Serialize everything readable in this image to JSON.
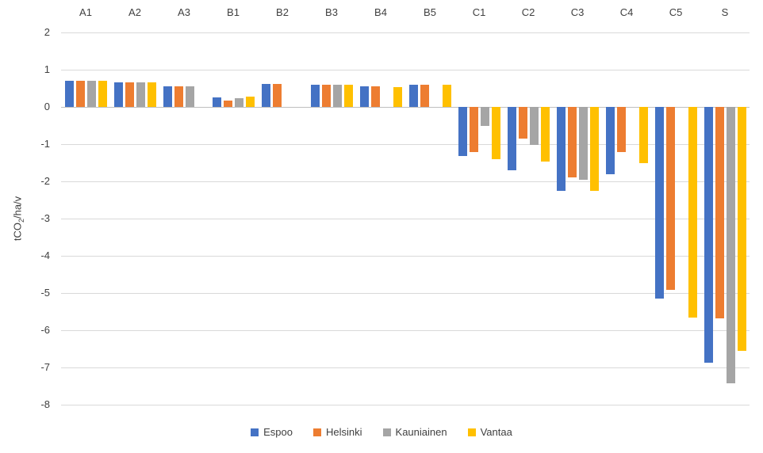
{
  "chart_data": {
    "type": "bar",
    "title": "",
    "ylabel": {
      "prefix": "tCO",
      "sub": "2",
      "suffix": "/ha/v"
    },
    "ylabel_text": "tCO2/ha/v",
    "categories": [
      "A1",
      "A2",
      "A3",
      "B1",
      "B2",
      "B3",
      "B4",
      "B5",
      "C1",
      "C2",
      "C3",
      "C4",
      "C5",
      "S"
    ],
    "series": [
      {
        "name": "Espoo",
        "color": "#4472C4",
        "values": [
          0.7,
          0.65,
          0.55,
          0.25,
          0.62,
          0.6,
          0.55,
          0.6,
          -1.32,
          -1.7,
          -2.25,
          -1.8,
          -5.15,
          -6.87
        ]
      },
      {
        "name": "Helsinki",
        "color": "#ED7D31",
        "values": [
          0.7,
          0.65,
          0.55,
          0.18,
          0.62,
          0.6,
          0.55,
          0.6,
          -1.22,
          -0.86,
          -1.9,
          -1.22,
          -4.92,
          -5.68
        ]
      },
      {
        "name": "Kauniainen",
        "color": "#A5A5A5",
        "values": [
          0.7,
          0.65,
          0.55,
          0.24,
          null,
          0.6,
          null,
          null,
          -0.52,
          -1.02,
          -1.96,
          null,
          null,
          -7.43
        ]
      },
      {
        "name": "Vantaa",
        "color": "#FFC000",
        "values": [
          0.7,
          0.65,
          null,
          0.28,
          null,
          0.6,
          0.53,
          0.6,
          -1.4,
          -1.46,
          -2.26,
          -1.5,
          -5.67,
          -6.55
        ]
      }
    ],
    "y_ticks": [
      2,
      1,
      0,
      -1,
      -2,
      -3,
      -4,
      -5,
      -6,
      -7,
      -8
    ],
    "ylim": [
      -8,
      2
    ],
    "grid": true,
    "gridline_color": "#d9d9d9",
    "zero_line_color": "#bfbfbf",
    "legend_position": "bottom",
    "category_labels_position": "top"
  }
}
